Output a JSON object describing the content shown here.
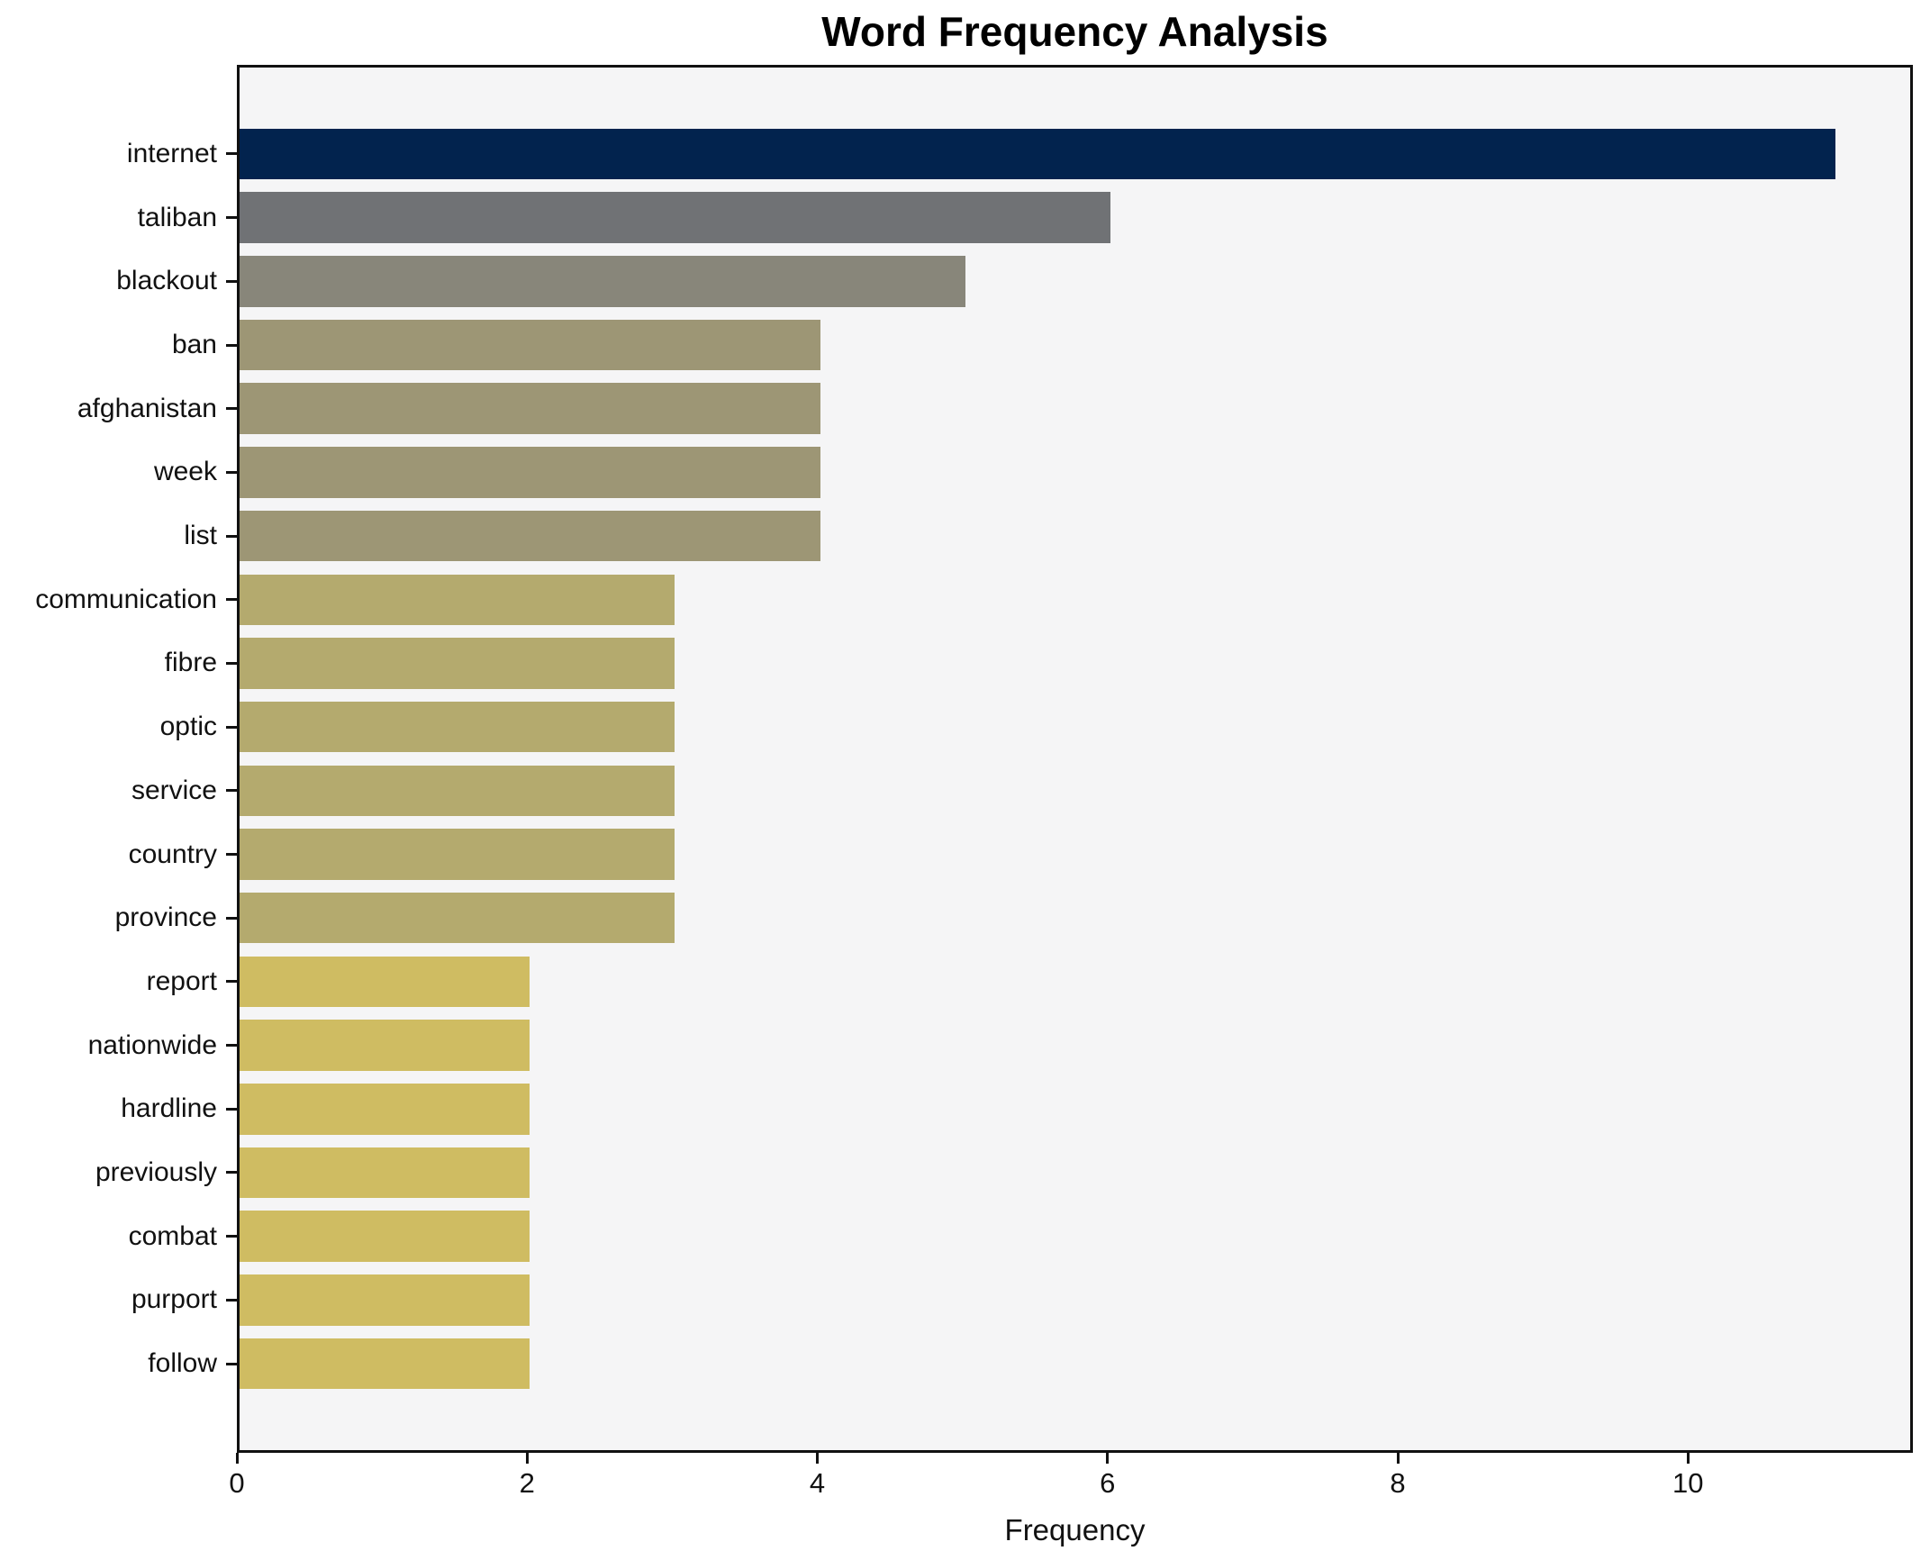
{
  "title": "Word Frequency Analysis",
  "xlabel": "Frequency",
  "chart_data": {
    "type": "bar",
    "orientation": "horizontal",
    "title": "Word Frequency Analysis",
    "xlabel": "Frequency",
    "ylabel": "",
    "categories": [
      "internet",
      "taliban",
      "blackout",
      "ban",
      "afghanistan",
      "week",
      "list",
      "communication",
      "fibre",
      "optic",
      "service",
      "country",
      "province",
      "report",
      "nationwide",
      "hardline",
      "previously",
      "combat",
      "purport",
      "follow"
    ],
    "values": [
      11,
      6,
      5,
      4,
      4,
      4,
      4,
      3,
      3,
      3,
      3,
      3,
      3,
      2,
      2,
      2,
      2,
      2,
      2,
      2
    ],
    "bar_colors": [
      "#02234e",
      "#707275",
      "#88867a",
      "#9d9675",
      "#9d9675",
      "#9d9675",
      "#9d9675",
      "#b4aa6e",
      "#b4aa6e",
      "#b4aa6e",
      "#b4aa6e",
      "#b4aa6e",
      "#b4aa6e",
      "#cfbc62",
      "#cfbc62",
      "#cfbc62",
      "#cfbc62",
      "#cfbc62",
      "#cfbc62",
      "#cfbc62"
    ],
    "xlim": [
      0,
      11.55
    ],
    "xticks": [
      0,
      2,
      4,
      6,
      8,
      10
    ],
    "grid": false,
    "legend": null,
    "plot_background": "#f5f5f6",
    "figure_background": "#ffffff",
    "spine_color": "#111111",
    "text_color": "#111111"
  }
}
